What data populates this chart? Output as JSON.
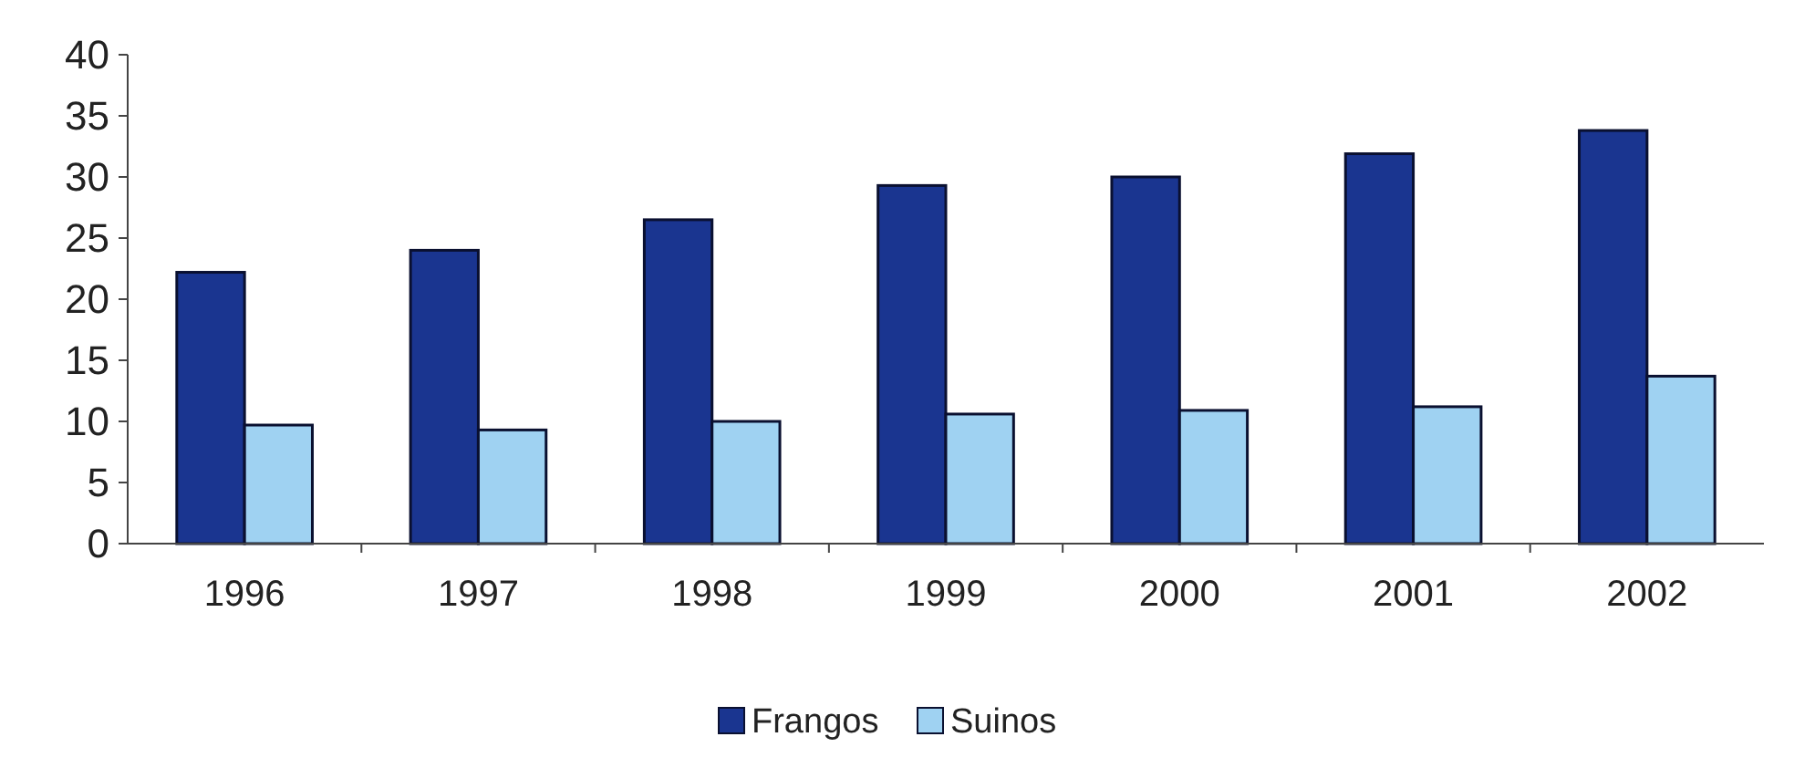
{
  "chart_data": {
    "type": "bar",
    "categories": [
      "1996",
      "1997",
      "1998",
      "1999",
      "2000",
      "2001",
      "2002"
    ],
    "series": [
      {
        "name": "Frangos",
        "color": "#1a3590",
        "values": [
          22.2,
          24,
          26.5,
          29.3,
          30,
          31.9,
          33.8
        ]
      },
      {
        "name": "Suinos",
        "color": "#9fd2f2",
        "values": [
          9.7,
          9.3,
          10,
          10.6,
          10.9,
          11.2,
          13.7
        ]
      }
    ],
    "ylim": [
      0,
      40
    ],
    "yticks": [
      0,
      5,
      10,
      15,
      20,
      25,
      30,
      35,
      40
    ],
    "grid": false,
    "legend": "bottom"
  }
}
